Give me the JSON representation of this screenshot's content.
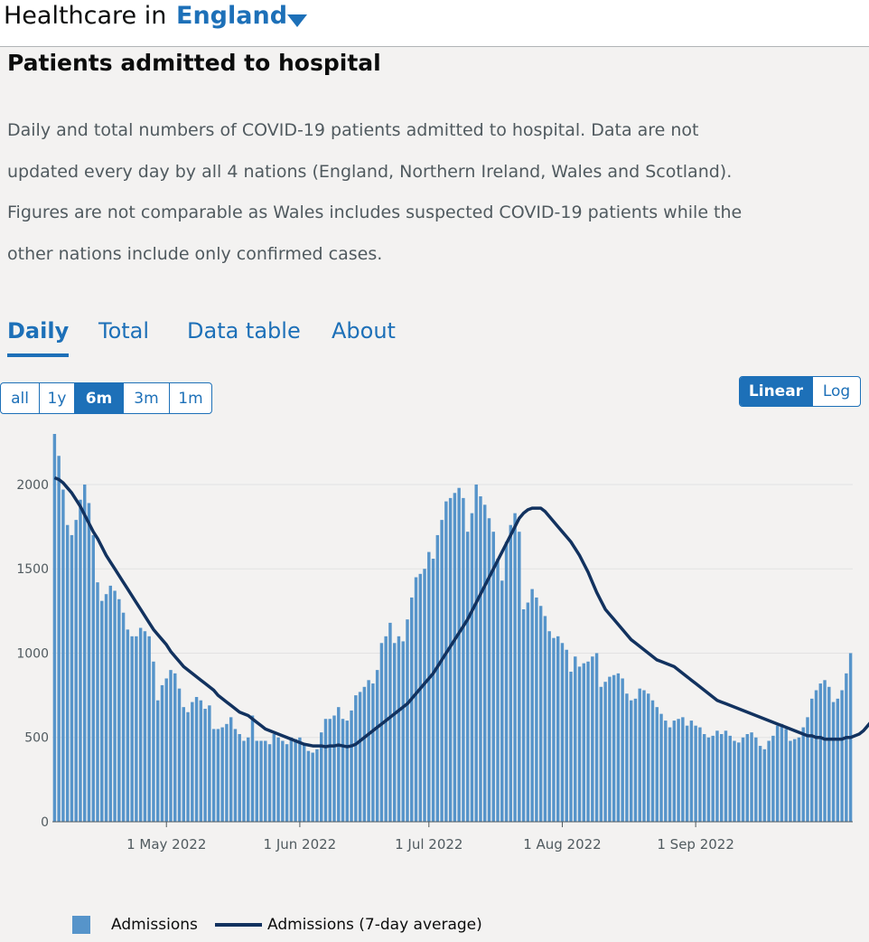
{
  "header": {
    "prefix": "Healthcare in",
    "area": "England",
    "area_dropdown_icon": "caret-down-icon"
  },
  "card": {
    "title": "Patients admitted to hospital",
    "description": "Daily and total numbers of COVID-19 patients admitted to hospital. Data are not updated every day by all 4 nations (England, Northern Ireland, Wales and Scotland). Figures are not comparable as Wales includes suspected COVID-19 patients while the other nations include only confirmed cases."
  },
  "tabs": [
    {
      "label": "Daily",
      "active": true
    },
    {
      "label": "Total",
      "active": false
    },
    {
      "label": "Data table",
      "active": false
    },
    {
      "label": "About",
      "active": false
    }
  ],
  "range_buttons": [
    {
      "label": "all",
      "selected": false
    },
    {
      "label": "1y",
      "selected": false
    },
    {
      "label": "6m",
      "selected": true
    },
    {
      "label": "3m",
      "selected": false
    },
    {
      "label": "1m",
      "selected": false
    }
  ],
  "scale_buttons": [
    {
      "label": "Linear",
      "selected": true
    },
    {
      "label": "Log",
      "selected": false
    }
  ],
  "colors": {
    "bars": "#5694ca",
    "average_line": "#12325f",
    "accent": "#1d70b8"
  },
  "chart_data": {
    "type": "bar",
    "x_start": "2022-04-05",
    "x_end": "2022-09-26",
    "y_ticks": [
      "0",
      "500",
      "1000",
      "1500",
      "2000"
    ],
    "ylim": [
      0,
      2300
    ],
    "grid": true,
    "legend_position": "bottom",
    "x_ticks": [
      {
        "label": "1 May 2022",
        "date": "2022-05-01"
      },
      {
        "label": "1 Jun 2022",
        "date": "2022-06-01"
      },
      {
        "label": "1 Jul 2022",
        "date": "2022-07-01"
      },
      {
        "label": "1 Aug 2022",
        "date": "2022-08-01"
      },
      {
        "label": "1 Sep 2022",
        "date": "2022-09-01"
      }
    ],
    "series": [
      {
        "name": "Admissions",
        "type": "bar",
        "values": [
          2300,
          2170,
          1970,
          1760,
          1700,
          1790,
          1910,
          2000,
          1890,
          1700,
          1420,
          1310,
          1350,
          1400,
          1370,
          1320,
          1240,
          1140,
          1100,
          1100,
          1150,
          1130,
          1100,
          950,
          720,
          810,
          850,
          900,
          880,
          790,
          680,
          650,
          710,
          740,
          720,
          670,
          690,
          550,
          550,
          560,
          580,
          620,
          550,
          520,
          480,
          500,
          630,
          480,
          480,
          480,
          460,
          520,
          500,
          480,
          460,
          500,
          490,
          500,
          460,
          420,
          410,
          430,
          530,
          610,
          610,
          630,
          680,
          610,
          600,
          660,
          750,
          770,
          800,
          840,
          820,
          900,
          1060,
          1100,
          1180,
          1060,
          1100,
          1070,
          1200,
          1330,
          1450,
          1470,
          1500,
          1600,
          1560,
          1700,
          1790,
          1900,
          1920,
          1950,
          1980,
          1920,
          1720,
          1830,
          2000,
          1930,
          1880,
          1800,
          1720,
          1560,
          1430,
          1660,
          1760,
          1830,
          1720,
          1260,
          1300,
          1380,
          1330,
          1280,
          1220,
          1130,
          1090,
          1100,
          1060,
          1020,
          890,
          980,
          920,
          940,
          950,
          980,
          1000,
          800,
          830,
          860,
          870,
          880,
          850,
          760,
          720,
          730,
          790,
          780,
          760,
          720,
          680,
          640,
          600,
          560,
          600,
          610,
          620,
          570,
          600,
          570,
          560,
          520,
          500,
          510,
          540,
          520,
          540,
          510,
          480,
          470,
          500,
          520,
          530,
          500,
          450,
          430,
          480,
          510,
          570,
          580,
          550,
          480,
          490,
          500,
          560,
          620,
          730,
          780,
          820,
          840,
          800,
          710,
          730,
          780,
          880,
          1000
        ]
      },
      {
        "name": "Admissions (7-day average)",
        "type": "line",
        "values": [
          2040,
          2030,
          2010,
          1980,
          1950,
          1910,
          1870,
          1820,
          1770,
          1720,
          1680,
          1630,
          1580,
          1540,
          1500,
          1460,
          1420,
          1380,
          1340,
          1300,
          1260,
          1220,
          1180,
          1140,
          1110,
          1080,
          1050,
          1010,
          980,
          950,
          920,
          900,
          880,
          860,
          840,
          820,
          800,
          780,
          750,
          730,
          710,
          690,
          670,
          650,
          640,
          630,
          610,
          590,
          570,
          550,
          540,
          530,
          520,
          510,
          500,
          490,
          480,
          470,
          460,
          455,
          450,
          450,
          450,
          445,
          450,
          450,
          455,
          450,
          445,
          450,
          460,
          480,
          500,
          520,
          540,
          560,
          580,
          600,
          620,
          640,
          660,
          680,
          700,
          730,
          760,
          790,
          820,
          850,
          880,
          920,
          960,
          1000,
          1040,
          1080,
          1120,
          1160,
          1200,
          1250,
          1300,
          1350,
          1400,
          1450,
          1500,
          1550,
          1600,
          1650,
          1700,
          1750,
          1800,
          1830,
          1850,
          1860,
          1860,
          1860,
          1840,
          1810,
          1780,
          1750,
          1720,
          1690,
          1660,
          1620,
          1580,
          1530,
          1480,
          1420,
          1360,
          1310,
          1260,
          1230,
          1200,
          1170,
          1140,
          1110,
          1080,
          1060,
          1040,
          1020,
          1000,
          980,
          960,
          950,
          940,
          930,
          920,
          900,
          880,
          860,
          840,
          820,
          800,
          780,
          760,
          740,
          720,
          710,
          700,
          690,
          680,
          670,
          660,
          650,
          640,
          630,
          620,
          610,
          600,
          590,
          580,
          570,
          560,
          550,
          540,
          530,
          520,
          510,
          510,
          500,
          500,
          490,
          490,
          490,
          490,
          490,
          500,
          500,
          510,
          520,
          540,
          570,
          600,
          630,
          660,
          690,
          730,
          770,
          810,
          850
        ]
      }
    ]
  },
  "legend": {
    "bar_label": "Admissions",
    "line_label": "Admissions (7-day average)"
  }
}
